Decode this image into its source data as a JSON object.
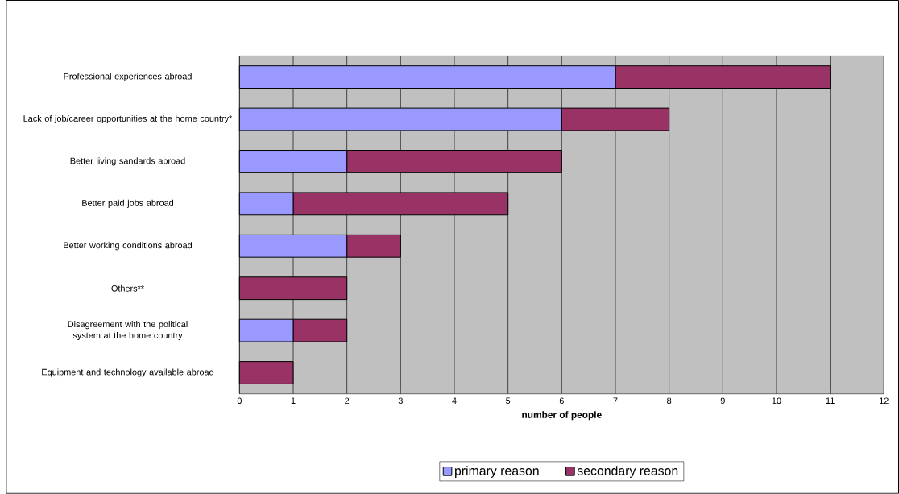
{
  "chart_data": {
    "type": "bar",
    "orientation": "horizontal",
    "stacked": true,
    "categories": [
      "Professional experiences abroad",
      "Lack of job/career opportunities at the home country*",
      "Better living sandards abroad",
      "Better paid jobs abroad",
      "Better working conditions abroad",
      "Others**",
      "Disagreement with the political system at the home country",
      "Equipment and technology available abroad"
    ],
    "series": [
      {
        "name": "primary reason",
        "color": "#9999ff",
        "values": [
          7,
          6,
          2,
          1,
          2,
          0,
          1,
          0
        ]
      },
      {
        "name": "secondary reason",
        "color": "#993366",
        "values": [
          4,
          2,
          4,
          4,
          1,
          2,
          1,
          1
        ]
      }
    ],
    "xlabel": "number of people",
    "xlim": [
      0,
      12
    ],
    "xticks": [
      0,
      1,
      2,
      3,
      4,
      5,
      6,
      7,
      8,
      9,
      10,
      11,
      12
    ],
    "grid": "x",
    "legend": "bottom"
  }
}
